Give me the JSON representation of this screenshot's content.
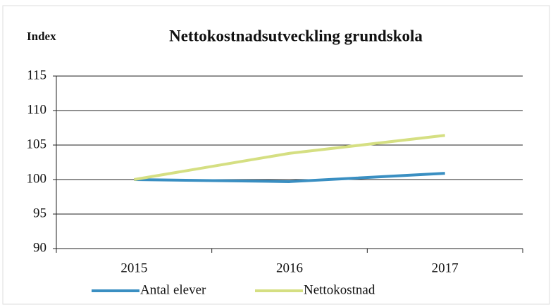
{
  "chart_data": {
    "type": "line",
    "title": "Nettokostnadsutveckling grundskola",
    "y_label": "Index",
    "categories": [
      "2015",
      "2016",
      "2017"
    ],
    "series": [
      {
        "name": "Antal elever",
        "color": "#3a8fc2",
        "values": [
          100,
          99.7,
          100.9
        ]
      },
      {
        "name": "Nettokostnad",
        "color": "#d5df82",
        "values": [
          100,
          103.8,
          106.4
        ]
      }
    ],
    "ylim": [
      90,
      115
    ],
    "yticks": [
      90,
      95,
      100,
      105,
      110,
      115
    ],
    "grid": true,
    "legend": "bottom"
  }
}
